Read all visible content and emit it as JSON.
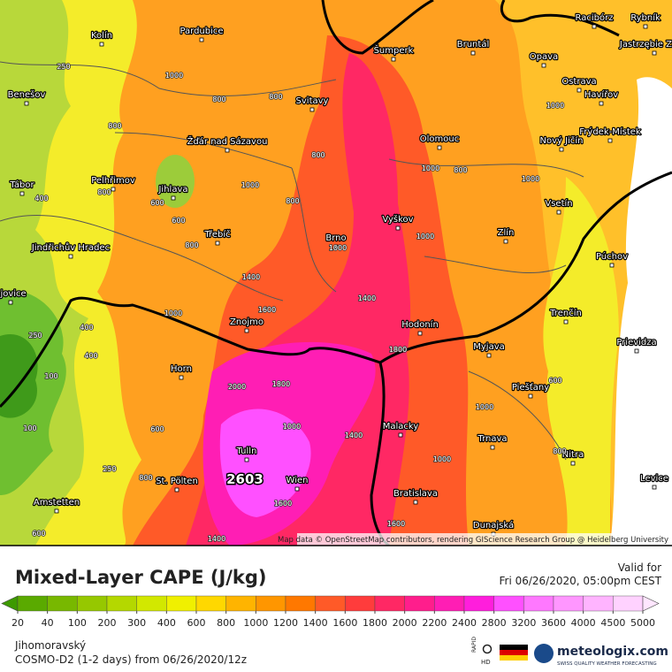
{
  "map": {
    "cities": [
      "Kolín",
      "Pardubice",
      "Šumperk",
      "Bruntál",
      "Racibórz",
      "Rybník",
      "Jastrzębie Zdrój",
      "Opava",
      "Ostrava",
      "Havířov",
      "Benešov",
      "Svitavy",
      "Frýdek-Místek",
      "Žďár nad Sázavou",
      "Olomouc",
      "Nový Jičín",
      "Tábor",
      "Pelhřimov",
      "Jihlava",
      "Vyškov",
      "Vsetín",
      "Jindřichův Hradec",
      "Třebíč",
      "Brno",
      "Zlín",
      "Púchov",
      "ejovice",
      "Znojmo",
      "Hodonín",
      "Trenčín",
      "Prievidza",
      "Horn",
      "Myjava",
      "Piešťany",
      "Malacky",
      "Trnava",
      "Nitra",
      "Tulln",
      "Wien",
      "St. Pölten",
      "Bratislava",
      "Levice",
      "Amstetten",
      "Dunajská"
    ],
    "contour_labels": [
      "250",
      "1000",
      "800",
      "800",
      "800",
      "1000",
      "600",
      "800",
      "400",
      "1000",
      "800",
      "1000",
      "600",
      "800",
      "800",
      "1000",
      "1000",
      "1400",
      "400",
      "1400",
      "1600",
      "1800",
      "800",
      "250",
      "400",
      "100",
      "1600",
      "600",
      "2000",
      "1800",
      "1000",
      "1400",
      "1000",
      "1000",
      "1600",
      "800",
      "1000",
      "250",
      "600",
      "800",
      "100",
      "600",
      "1000",
      "1400"
    ],
    "max_label": "2603",
    "attribution": "Map data © OpenStreetMap contributors, rendering GIScience Research Group @ Heidelberg University"
  },
  "legend": {
    "title": "Mixed-Layer CAPE (J/kg)",
    "valid_label": "Valid for",
    "valid_time": "Fri 06/26/2020, 05:00pm CEST",
    "ticks": [
      20,
      40,
      100,
      200,
      300,
      400,
      600,
      800,
      1000,
      1200,
      1400,
      1600,
      1800,
      2000,
      2200,
      2400,
      2800,
      3200,
      3600,
      4000,
      4500,
      5000
    ],
    "colors": [
      "#3d9a00",
      "#5aaa00",
      "#78b800",
      "#96c800",
      "#b4d800",
      "#d2e800",
      "#f0f000",
      "#ffd800",
      "#ffb400",
      "#ff9600",
      "#ff7800",
      "#ff5a28",
      "#ff3c3c",
      "#ff2864",
      "#ff1e8c",
      "#ff1eb4",
      "#ff1edc",
      "#ff50ff",
      "#ff78ff",
      "#ff96ff",
      "#ffb4ff",
      "#ffd2ff",
      "#ffe6ff"
    ]
  },
  "footer": {
    "region": "Jihomoravský",
    "model": "COSMO-D2 (1-2 days) from 06/26/2020/12z",
    "rapid": "RAPID",
    "hd": "HD",
    "brand": "meteologix.com",
    "tagline": "SWISS QUALITY WEATHER FORECASTING"
  }
}
